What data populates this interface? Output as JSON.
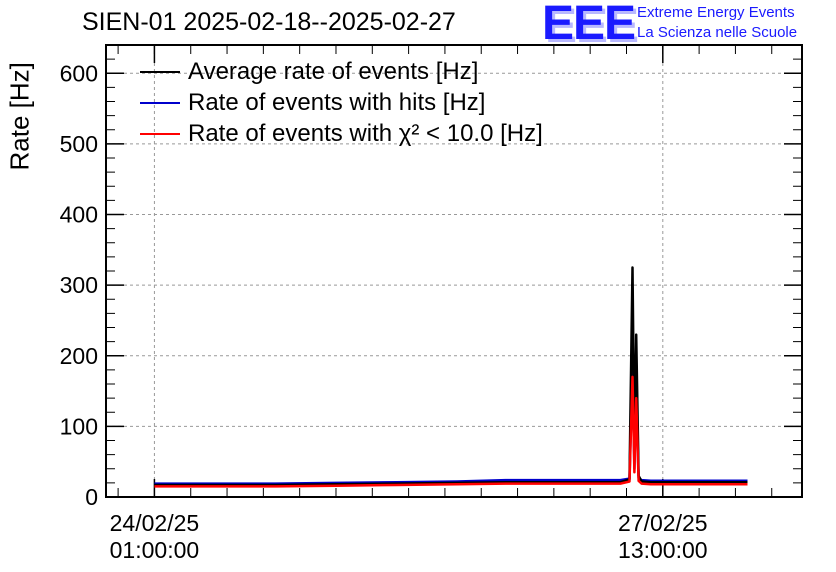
{
  "header": {
    "title": "SIEN-01 2025-02-18--2025-02-27",
    "logo_text": "EEE",
    "logo_line1": "Extreme Energy Events",
    "logo_line2": "La Scienza nelle Scuole"
  },
  "chart_data": {
    "type": "line",
    "title": "SIEN-01 2025-02-18--2025-02-27",
    "ylabel": "Rate [Hz]",
    "xlabel": "",
    "ylim": [
      0,
      640
    ],
    "yticks": [
      0,
      100,
      200,
      300,
      400,
      500,
      600
    ],
    "ytick_labels": [
      "0",
      "100",
      "200",
      "300",
      "400",
      "500",
      "600"
    ],
    "xlim_hours": [
      -8,
      107
    ],
    "xticks": [
      {
        "hour": 0,
        "label_line1": "24/02/25",
        "label_line2": "01:00:00"
      },
      {
        "hour": 84,
        "label_line1": "27/02/25",
        "label_line2": "13:00:00"
      }
    ],
    "x_axis_note": "time in hours from 24/02/25 01:00:00",
    "grid": true,
    "legend_position": "top-left",
    "series": [
      {
        "name": "Average rate of events [Hz]",
        "color": "#000000",
        "x": [
          0,
          10,
          20,
          30,
          40,
          50,
          58,
          66,
          72,
          77,
          78.5,
          79.0,
          79.3,
          79.6,
          80.0,
          80.5,
          82,
          90,
          98
        ],
        "y": [
          17,
          17,
          17,
          18,
          19,
          20,
          21,
          21,
          21,
          21,
          25,
          325,
          60,
          230,
          30,
          22,
          21,
          21,
          21
        ]
      },
      {
        "name": "Rate of events with hits [Hz]",
        "color": "#0000cc",
        "x": [
          0,
          10,
          20,
          30,
          40,
          50,
          58,
          66,
          72,
          77,
          78.5,
          79.0,
          79.3,
          79.6,
          80.0,
          80.5,
          82,
          90,
          98
        ],
        "y": [
          19,
          19,
          19,
          20,
          21,
          22,
          24,
          24,
          24,
          24,
          26,
          185,
          40,
          150,
          27,
          24,
          23,
          23,
          23
        ]
      },
      {
        "name": "Rate of events with χ² < 10.0 [Hz]",
        "color": "#ff0000",
        "x": [
          0,
          10,
          20,
          30,
          40,
          50,
          58,
          66,
          72,
          77,
          78.5,
          79.0,
          79.3,
          79.6,
          80.0,
          80.5,
          82,
          90,
          98
        ],
        "y": [
          15,
          15,
          15,
          16,
          17,
          18,
          19,
          19,
          19,
          19,
          22,
          170,
          35,
          140,
          23,
          19,
          18,
          18,
          18
        ]
      }
    ]
  }
}
